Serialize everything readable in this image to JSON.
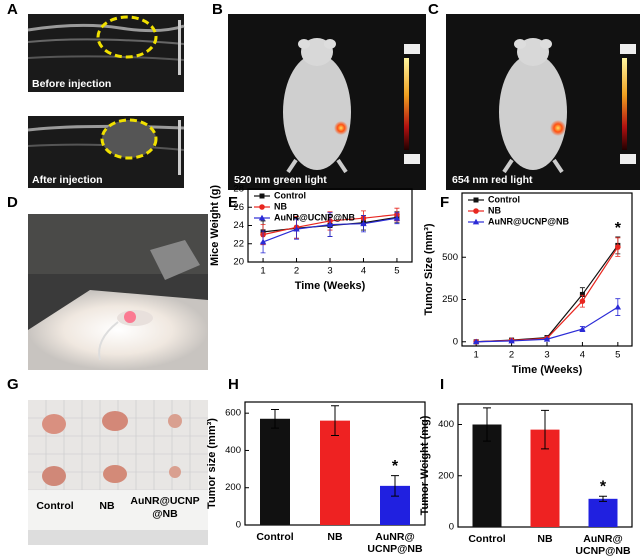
{
  "panels": {
    "labels": [
      "A",
      "B",
      "C",
      "D",
      "E",
      "F",
      "G",
      "H",
      "I"
    ],
    "A": {
      "top_caption": "Before injection",
      "bottom_caption": "After injection"
    },
    "B": {
      "caption": "520 nm green light"
    },
    "C": {
      "caption": "654 nm red light"
    },
    "G": {
      "labels": [
        "Control",
        "NB",
        [
          "AuNR@UCNP",
          "@NB"
        ]
      ]
    }
  },
  "chart_data": [
    {
      "type": "line",
      "xlabel": "Time (Weeks)",
      "ylabel": "Mice Weight (g)",
      "x": [
        1,
        2,
        3,
        4,
        5
      ],
      "xlim": [
        0.55,
        5.45
      ],
      "xticks": [
        1,
        2,
        3,
        4,
        5
      ],
      "ylim": [
        20,
        28
      ],
      "yticks": [
        20,
        22,
        24,
        26,
        28
      ],
      "legend": "upper left",
      "series": [
        {
          "name": "Control",
          "color": "#111111",
          "marker": "square",
          "values": [
            23.3,
            23.7,
            24.0,
            24.3,
            24.9
          ],
          "errors": [
            1.2,
            1.1,
            1.2,
            0.8,
            0.6
          ]
        },
        {
          "name": "NB",
          "color": "#e8261f",
          "marker": "circle",
          "values": [
            23.0,
            23.8,
            24.5,
            24.8,
            25.2
          ],
          "errors": [
            1.1,
            1.2,
            1.0,
            0.8,
            0.7
          ]
        },
        {
          "name": "AuNR@UCNP@NB",
          "color": "#2b2bd6",
          "marker": "triangle",
          "values": [
            22.2,
            23.6,
            24.1,
            24.2,
            24.8
          ],
          "errors": [
            1.2,
            1.1,
            1.3,
            0.9,
            0.6
          ]
        }
      ]
    },
    {
      "type": "line",
      "xlabel": "Time (Weeks)",
      "ylabel": "Tumor Size (mm³)",
      "x": [
        1,
        2,
        3,
        4,
        5
      ],
      "xlim": [
        0.6,
        5.4
      ],
      "xticks": [
        1,
        2,
        3,
        4,
        5
      ],
      "ylim": [
        -25,
        880
      ],
      "yticks": [
        0,
        250,
        500
      ],
      "legend": "upper left",
      "annotation": "*",
      "series": [
        {
          "name": "Control",
          "color": "#111111",
          "marker": "square",
          "values": [
            0,
            10,
            25,
            280,
            570
          ],
          "errors": [
            0,
            5,
            5,
            40,
            50
          ]
        },
        {
          "name": "NB",
          "color": "#e8261f",
          "marker": "circle",
          "values": [
            0,
            8,
            20,
            240,
            560
          ],
          "errors": [
            0,
            5,
            5,
            35,
            55
          ]
        },
        {
          "name": "AuNR@UCNP@NB",
          "color": "#2b2bd6",
          "marker": "triangle",
          "values": [
            0,
            5,
            15,
            75,
            205
          ],
          "errors": [
            0,
            3,
            5,
            15,
            50
          ]
        }
      ]
    },
    {
      "type": "bar",
      "ylabel": "Tumor size (mm³)",
      "categories": [
        "Control",
        "NB",
        [
          "AuNR@",
          "UCNP@NB"
        ]
      ],
      "values": [
        570,
        560,
        210
      ],
      "errors": [
        50,
        80,
        55
      ],
      "colors": [
        "#111111",
        "#ee2222",
        "#2020e0"
      ],
      "ylim": [
        0,
        660
      ],
      "yticks": [
        0,
        200,
        400,
        600
      ],
      "annotation": "*"
    },
    {
      "type": "bar",
      "ylabel": "Tumor Weight (mg)",
      "categories": [
        "Control",
        "NB",
        [
          "AuNR@",
          "UCNP@NB"
        ]
      ],
      "values": [
        400,
        380,
        110
      ],
      "errors": [
        65,
        75,
        10
      ],
      "colors": [
        "#111111",
        "#ee2222",
        "#2020e0"
      ],
      "ylim": [
        0,
        480
      ],
      "yticks": [
        0,
        200,
        400
      ],
      "annotation": "*"
    }
  ]
}
